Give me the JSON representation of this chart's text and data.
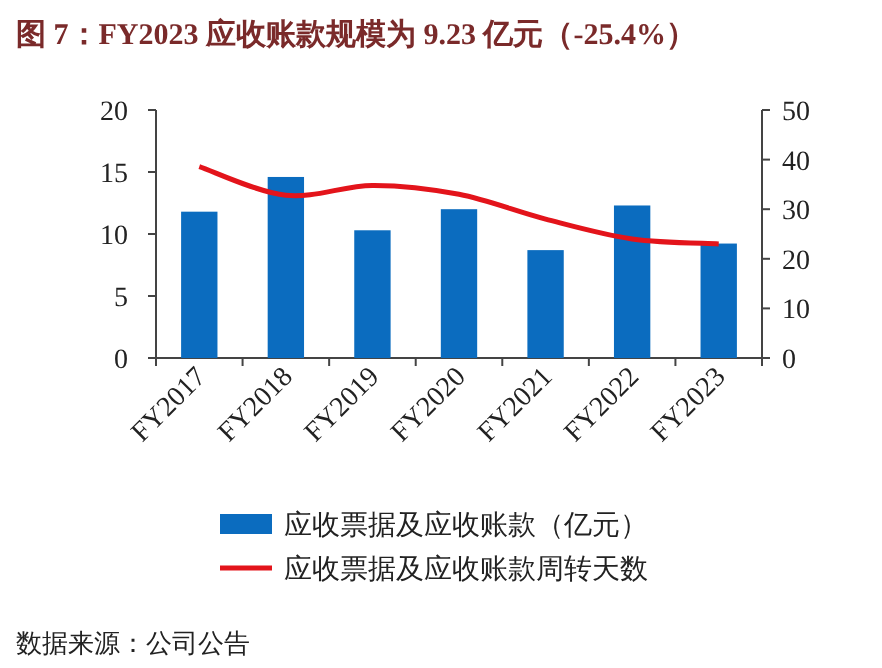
{
  "chart_data": {
    "type": "bar",
    "title": "图 7：FY2023 应收账款规模为 9.23 亿元（-25.4%）",
    "categories": [
      "FY2017",
      "FY2018",
      "FY2019",
      "FY2020",
      "FY2021",
      "FY2022",
      "FY2023"
    ],
    "series": [
      {
        "name": "应收票据及应收账款（亿元）",
        "color": "#0b6cbf",
        "values": [
          11.8,
          14.6,
          10.3,
          12.0,
          8.7,
          12.3,
          9.23
        ]
      },
      {
        "name": "应收票据及应收账款周转天数",
        "color": "#e3141b",
        "type": "line",
        "axis": "y2",
        "values": [
          38.6,
          32.8,
          34.8,
          33.0,
          28.0,
          24.0,
          23.0
        ]
      }
    ],
    "ylim": [
      0,
      20
    ],
    "yticks": [
      0,
      5,
      10,
      15,
      20
    ],
    "y2lim": [
      0,
      50
    ],
    "y2ticks": [
      0,
      10,
      20,
      30,
      40,
      50
    ],
    "legend": "bottom",
    "grid": false,
    "annotations": [
      "数据来源：公司公告"
    ]
  }
}
